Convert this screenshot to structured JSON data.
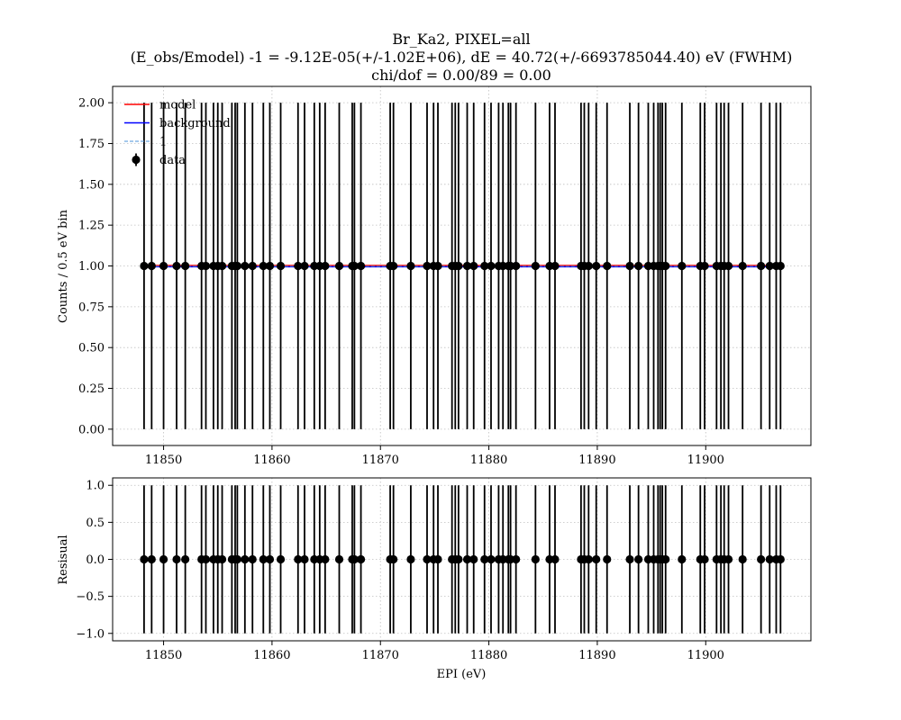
{
  "chart_data": [
    {
      "type": "scatter",
      "title_lines": [
        "Br_Ka2, PIXEL=all",
        "(E_obs/Emodel) -1 = -9.12E-05(+/-1.02E+06), dE = 40.72(+/-6693785044.40) eV (FWHM)",
        "chi/dof = 0.00/89 = 0.00"
      ],
      "xlabel": "",
      "ylabel": "Counts / 0.5 eV bin",
      "xlim": [
        11845.3,
        11909.7
      ],
      "ylim": [
        -0.1,
        2.1
      ],
      "x_ticks": [
        11850,
        11860,
        11870,
        11880,
        11890,
        11900
      ],
      "x_tick_labels": [
        "11850",
        "11860",
        "11870",
        "11880",
        "11890",
        "11900"
      ],
      "y_ticks": [
        0.0,
        0.25,
        0.5,
        0.75,
        1.0,
        1.25,
        1.5,
        1.75,
        2.0
      ],
      "y_tick_labels": [
        "0.00",
        "0.25",
        "0.50",
        "0.75",
        "1.00",
        "1.25",
        "1.50",
        "1.75",
        "2.00"
      ],
      "grid": true,
      "legend_position": "top-left",
      "legend": [
        {
          "label": "model",
          "style": "solid",
          "color": "#ff0000"
        },
        {
          "label": "background",
          "style": "solid",
          "color": "#0000ff"
        },
        {
          "label": "1",
          "style": "dashed",
          "color": "#4a90d9"
        },
        {
          "label": "data",
          "style": "errorbar-point",
          "color": "#000000"
        }
      ],
      "lines": [
        {
          "name": "model",
          "y": 1.003,
          "color": "#ff0000"
        },
        {
          "name": "background",
          "y": 0.995,
          "color": "#0000ff"
        },
        {
          "name": "1",
          "y": 0.998,
          "color": "#4a90d9"
        }
      ],
      "series": [
        {
          "name": "data",
          "x": [
            11848.2,
            11848.9,
            11850.0,
            11851.2,
            11852.0,
            11853.5,
            11853.9,
            11854.6,
            11855.0,
            11855.4,
            11856.3,
            11856.6,
            11856.8,
            11857.5,
            11858.2,
            11859.2,
            11859.8,
            11860.8,
            11862.4,
            11863.0,
            11863.9,
            11864.4,
            11864.9,
            11866.2,
            11867.4,
            11867.6,
            11868.2,
            11870.9,
            11871.2,
            11872.8,
            11874.3,
            11874.9,
            11875.3,
            11876.6,
            11876.9,
            11877.2,
            11878.0,
            11878.6,
            11879.6,
            11880.2,
            11880.9,
            11881.3,
            11881.8,
            11882.0,
            11882.5,
            11884.3,
            11885.6,
            11886.1,
            11888.5,
            11888.8,
            11889.2,
            11889.9,
            11890.9,
            11893.0,
            11893.8,
            11894.7,
            11895.2,
            11895.6,
            11895.8,
            11896.0,
            11896.3,
            11897.8,
            11899.5,
            11899.9,
            11901.0,
            11901.4,
            11901.7,
            11902.1,
            11903.4,
            11905.1,
            11905.9,
            11906.5,
            11906.9
          ],
          "y": [
            1,
            1,
            1,
            1,
            1,
            1,
            1,
            1,
            1,
            1,
            1,
            1,
            1,
            1,
            1,
            1,
            1,
            1,
            1,
            1,
            1,
            1,
            1,
            1,
            1,
            1,
            1,
            1,
            1,
            1,
            1,
            1,
            1,
            1,
            1,
            1,
            1,
            1,
            1,
            1,
            1,
            1,
            1,
            1,
            1,
            1,
            1,
            1,
            1,
            1,
            1,
            1,
            1,
            1,
            1,
            1,
            1,
            1,
            1,
            1,
            1,
            1,
            1,
            1,
            1,
            1,
            1,
            1,
            1,
            1,
            1,
            1,
            1
          ],
          "y_err": 1.0,
          "color": "#000000"
        }
      ]
    },
    {
      "type": "scatter",
      "xlabel": "EPI (eV)",
      "ylabel": "Resisual",
      "xlim": [
        11845.3,
        11909.7
      ],
      "ylim": [
        -1.1,
        1.1
      ],
      "x_ticks": [
        11850,
        11860,
        11870,
        11880,
        11890,
        11900
      ],
      "x_tick_labels": [
        "11850",
        "11860",
        "11870",
        "11880",
        "11890",
        "11900"
      ],
      "y_ticks": [
        -1.0,
        -0.5,
        0.0,
        0.5,
        1.0
      ],
      "y_tick_labels": [
        "−1.0",
        "−0.5",
        "0.0",
        "0.5",
        "1.0"
      ],
      "grid": true,
      "series": [
        {
          "name": "residual",
          "x": [
            11848.2,
            11848.9,
            11850.0,
            11851.2,
            11852.0,
            11853.5,
            11853.9,
            11854.6,
            11855.0,
            11855.4,
            11856.3,
            11856.6,
            11856.8,
            11857.5,
            11858.2,
            11859.2,
            11859.8,
            11860.8,
            11862.4,
            11863.0,
            11863.9,
            11864.4,
            11864.9,
            11866.2,
            11867.4,
            11867.6,
            11868.2,
            11870.9,
            11871.2,
            11872.8,
            11874.3,
            11874.9,
            11875.3,
            11876.6,
            11876.9,
            11877.2,
            11878.0,
            11878.6,
            11879.6,
            11880.2,
            11880.9,
            11881.3,
            11881.8,
            11882.0,
            11882.5,
            11884.3,
            11885.6,
            11886.1,
            11888.5,
            11888.8,
            11889.2,
            11889.9,
            11890.9,
            11893.0,
            11893.8,
            11894.7,
            11895.2,
            11895.6,
            11895.8,
            11896.0,
            11896.3,
            11897.8,
            11899.5,
            11899.9,
            11901.0,
            11901.4,
            11901.7,
            11902.1,
            11903.4,
            11905.1,
            11905.9,
            11906.5,
            11906.9
          ],
          "y": [
            0,
            0,
            0,
            0,
            0,
            0,
            0,
            0,
            0,
            0,
            0,
            0,
            0,
            0,
            0,
            0,
            0,
            0,
            0,
            0,
            0,
            0,
            0,
            0,
            0,
            0,
            0,
            0,
            0,
            0,
            0,
            0,
            0,
            0,
            0,
            0,
            0,
            0,
            0,
            0,
            0,
            0,
            0,
            0,
            0,
            0,
            0,
            0,
            0,
            0,
            0,
            0,
            0,
            0,
            0,
            0,
            0,
            0,
            0,
            0,
            0,
            0,
            0,
            0,
            0,
            0,
            0,
            0,
            0,
            0,
            0,
            0,
            0
          ],
          "y_err": 1.0,
          "color": "#000000"
        }
      ]
    }
  ]
}
